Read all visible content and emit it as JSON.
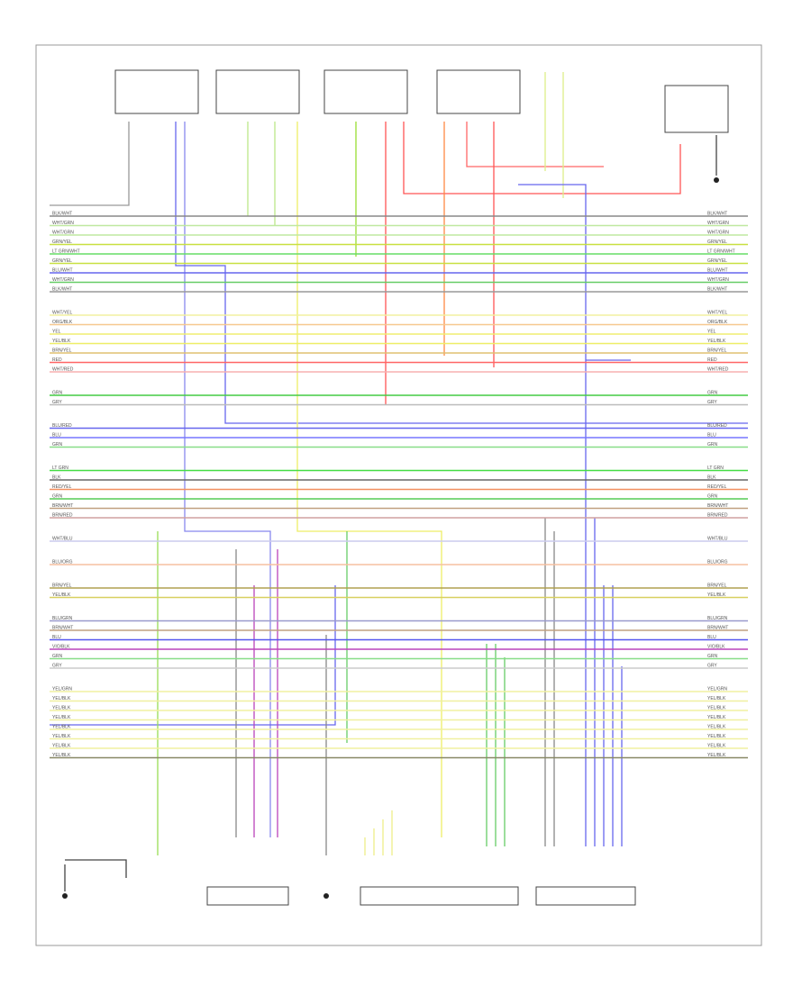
{
  "wire_groups": [
    [
      {
        "label": "BLK/WHT",
        "color": "#888888"
      },
      {
        "label": "WHT/GRN",
        "color": "#bfe8a0"
      },
      {
        "label": "WHT/GRN",
        "color": "#bfe8a0"
      },
      {
        "label": "GRN/YEL",
        "color": "#c8e040"
      },
      {
        "label": "LT GRN/WHT",
        "color": "#66dd66"
      },
      {
        "label": "GRN/YEL",
        "color": "#c8e040"
      },
      {
        "label": "BLU/WHT",
        "color": "#6666ee"
      },
      {
        "label": "WHT/GRN",
        "color": "#66cc66"
      },
      {
        "label": "BLK/WHT",
        "color": "#999999"
      }
    ],
    [
      {
        "label": "WHT/YEL",
        "color": "#f2f0a0"
      },
      {
        "label": "ORG/BLK",
        "color": "#f6c890"
      },
      {
        "label": "YEL",
        "color": "#f0ee70"
      },
      {
        "label": "YEL/BLK",
        "color": "#eeee66"
      },
      {
        "label": "BRN/YEL",
        "color": "#e0c070"
      },
      {
        "label": "RED",
        "color": "#ff6666"
      },
      {
        "label": "WHT/RED",
        "color": "#f7b0b0"
      }
    ],
    [
      {
        "label": "GRN",
        "color": "#44cc44"
      },
      {
        "label": "GRY",
        "color": "#bbbbbb"
      }
    ],
    [
      {
        "label": "BLU/RED",
        "color": "#6666ee"
      },
      {
        "label": "BLU",
        "color": "#7777ff"
      },
      {
        "label": "GRN",
        "color": "#88dd88"
      }
    ],
    [
      {
        "label": "LT GRN",
        "color": "#44dd44"
      },
      {
        "label": "BLK",
        "color": "#666666"
      },
      {
        "label": "RED/YEL",
        "color": "#f29060"
      },
      {
        "label": "GRN",
        "color": "#55cc55"
      },
      {
        "label": "BRN/WHT",
        "color": "#c0a080"
      },
      {
        "label": "BRN/RED",
        "color": "#d0a0a0"
      }
    ],
    [
      {
        "label": "WHT/BLU",
        "color": "#ccccee"
      }
    ],
    [
      {
        "label": "BLU/ORG",
        "color": "#f6c0a0"
      }
    ],
    [
      {
        "label": "BRN/YEL",
        "color": "#b0a050"
      },
      {
        "label": "YEL/BLK",
        "color": "#d8d060"
      }
    ],
    [
      {
        "label": "BLU/GRN",
        "color": "#9999cc"
      },
      {
        "label": "BRN/WHT",
        "color": "#c0a080"
      },
      {
        "label": "BLU",
        "color": "#5555ee"
      },
      {
        "label": "VIO/BLK",
        "color": "#bb44bb"
      },
      {
        "label": "GRN",
        "color": "#88dd88"
      },
      {
        "label": "GRY",
        "color": "#cccccc"
      }
    ],
    [
      {
        "label": "YEL/GRN",
        "color": "#f0f0a0"
      },
      {
        "label": "YEL/BLK",
        "color": "#f0f0a0"
      },
      {
        "label": "YEL/BLK",
        "color": "#f0f0a0"
      },
      {
        "label": "YEL/BLK",
        "color": "#f0f0a0"
      },
      {
        "label": "YEL/BLK",
        "color": "#f0f0a0"
      },
      {
        "label": "YEL/BLK",
        "color": "#f0f0a0"
      },
      {
        "label": "YEL/BLK",
        "color": "#f0f0a0"
      },
      {
        "label": "YEL/BLK",
        "color": "#888866"
      }
    ]
  ]
}
